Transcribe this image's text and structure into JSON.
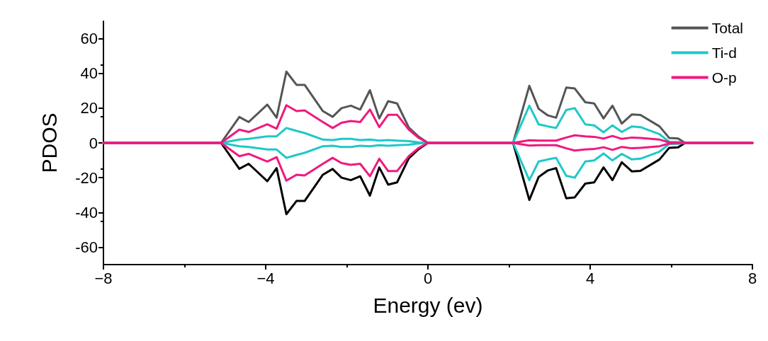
{
  "chart_data": {
    "type": "line",
    "xlabel": "Energy (ev)",
    "ylabel": "PDOS",
    "x": [
      -8,
      -5.1,
      -4.65,
      -4.42,
      -3.96,
      -3.73,
      -3.49,
      -3.24,
      -3.04,
      -2.59,
      -2.35,
      -2.13,
      -1.9,
      -1.67,
      -1.43,
      -1.2,
      -0.98,
      -0.76,
      -0.47,
      -0.24,
      0,
      2.1,
      2.5,
      2.73,
      2.96,
      3.16,
      3.41,
      3.62,
      3.88,
      4.1,
      4.33,
      4.55,
      4.78,
      5.03,
      5.24,
      5.71,
      5.95,
      6.17,
      6.34,
      8
    ],
    "series": [
      {
        "name": "Total",
        "color": "#555555",
        "values": [
          0,
          0,
          14.9,
          12,
          22,
          14.5,
          41,
          33.4,
          33.4,
          18.3,
          15,
          20,
          21.4,
          19.2,
          30.3,
          14.1,
          24,
          22.7,
          8.8,
          3.8,
          0,
          0,
          32.8,
          19.6,
          15.8,
          14.5,
          31.8,
          31.3,
          23.4,
          22.7,
          14.1,
          21.4,
          11.1,
          16.4,
          16.1,
          9.5,
          2.8,
          2.5,
          0,
          0
        ]
      },
      {
        "color": "#000000",
        "values": [
          0,
          0,
          -14.9,
          -12,
          -22,
          -14.5,
          -41,
          -33.4,
          -33.4,
          -18.3,
          -15,
          -20,
          -21.4,
          -19.2,
          -30.3,
          -14.1,
          -24,
          -22.7,
          -8.8,
          -3.8,
          0,
          0,
          -32.8,
          -19.6,
          -15.8,
          -14.5,
          -31.8,
          -31.3,
          -23.4,
          -22.7,
          -14.1,
          -21.4,
          -11.1,
          -16.4,
          -16.1,
          -9.5,
          -2.8,
          -2.5,
          0,
          0
        ]
      },
      {
        "name": "Ti-d",
        "color": "#1fc8c8",
        "values": [
          0,
          0,
          1.9,
          2.3,
          3.8,
          3.8,
          8.6,
          6.9,
          5.7,
          1.9,
          1.6,
          2.3,
          2.3,
          1.6,
          1.9,
          1.3,
          1.6,
          1.3,
          1,
          0.3,
          0,
          0,
          21.4,
          10.7,
          9.5,
          8.6,
          18.9,
          20,
          10.7,
          10.1,
          6.1,
          10.1,
          6.3,
          9.5,
          9.1,
          5,
          0.6,
          0.5,
          0,
          0
        ]
      },
      {
        "color": "#1fc8c8",
        "values": [
          0,
          0,
          -1.9,
          -2.3,
          -3.8,
          -3.8,
          -8.6,
          -6.9,
          -5.7,
          -1.9,
          -1.6,
          -2.3,
          -2.3,
          -1.6,
          -1.9,
          -1.3,
          -1.6,
          -1.3,
          -1,
          -0.3,
          0,
          0,
          -21.4,
          -10.7,
          -9.5,
          -8.6,
          -18.9,
          -20,
          -10.7,
          -10.1,
          -6.1,
          -10.1,
          -6.3,
          -9.5,
          -9.1,
          -5,
          -0.6,
          -0.5,
          0,
          0
        ]
      },
      {
        "name": "O-p",
        "color": "#f0197f",
        "values": [
          0,
          0,
          7.6,
          6.3,
          10.7,
          8.2,
          21.7,
          18.3,
          18.7,
          12,
          8.6,
          11.6,
          12.6,
          12,
          19.2,
          9.1,
          16.2,
          16.2,
          7.6,
          3.1,
          0,
          0,
          1.5,
          1.3,
          1.3,
          1.3,
          3.1,
          4.4,
          3.8,
          3.5,
          2.5,
          4,
          2.3,
          3.1,
          2.8,
          1.9,
          0.3,
          0,
          0,
          0
        ]
      },
      {
        "color": "#f0197f",
        "values": [
          0,
          0,
          -7.6,
          -6.3,
          -10.7,
          -8.2,
          -21.7,
          -18.3,
          -18.7,
          -12,
          -8.6,
          -11.6,
          -12.6,
          -12,
          -19.2,
          -9.1,
          -16.2,
          -16.2,
          -7.6,
          -3.1,
          0,
          0,
          -1.5,
          -1.3,
          -1.3,
          -1.3,
          -3.1,
          -4.4,
          -3.8,
          -3.5,
          -2.5,
          -4,
          -2.3,
          -3.1,
          -2.8,
          -1.9,
          -0.3,
          0,
          0,
          0
        ]
      }
    ],
    "xlim": [
      -8,
      8
    ],
    "xticks": [
      {
        "value": -8,
        "label": "−8"
      },
      {
        "value": -4,
        "label": "−4"
      },
      0,
      4,
      8
    ],
    "ylim": [
      -70,
      70
    ],
    "yticks": [
      -60,
      -40,
      -20,
      0,
      20,
      40,
      60
    ],
    "grid": false,
    "legend": "top right",
    "marker": "none",
    "line_style": "solid"
  }
}
